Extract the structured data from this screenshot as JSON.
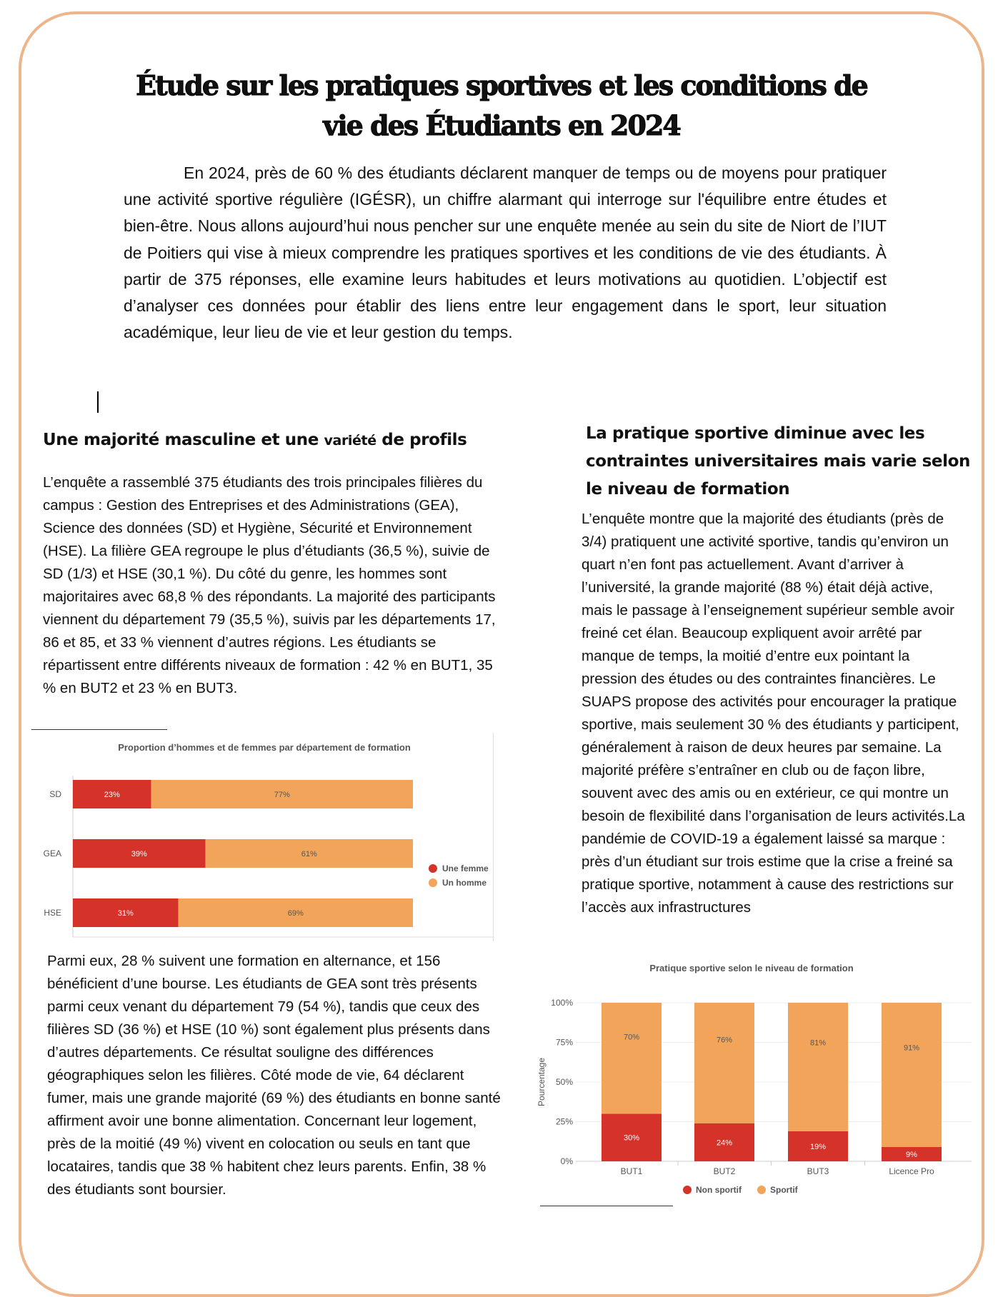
{
  "title_line1": "Étude sur les pratiques sportives et les conditions de",
  "title_line2": "vie des Étudiants en 2024",
  "intro": "En 2024, près de 60 % des étudiants déclarent manquer de temps ou de moyens pour pratiquer une activité sportive régulière (IGÉSR), un chiffre alarmant qui interroge sur l'équilibre entre études et bien-être. Nous allons aujourd’hui nous pencher sur une enquête menée au sein du site de Niort de l’IUT de Poitiers qui vise à mieux comprendre les pratiques sportives et les conditions de vie des étudiants. À partir de 375 réponses, elle examine leurs habitudes et leurs motivations au quotidien. L’objectif est d’analyser ces données pour établir des liens entre leur engagement dans le sport, leur situation académique, leur lieu de vie et leur gestion du temps.",
  "left": {
    "heading_part1": "Une majorité masculine et une ",
    "heading_part2": "variété",
    "heading_part3": " de profils",
    "paragraph1": "L’enquête a rassemblé 375 étudiants des trois principales filières du campus : Gestion des Entreprises et des Administrations (GEA), Science des données (SD) et Hygiène, Sécurité et Environnement (HSE). La filière GEA regroupe le plus d’étudiants (36,5 %), suivie de SD (1/3) et HSE (30,1 %). Du côté du genre, les hommes sont majoritaires avec 68,8 % des répondants. La majorité des participants viennent du département 79 (35,5 %), suivis par les départements 17, 86 et 85, et 33 % viennent d’autres régions. Les étudiants se répartissent entre différents niveaux de formation : 42 % en BUT1, 35 % en BUT2 et 23 % en BUT3.",
    "paragraph2": "Parmi eux, 28 % suivent une formation en alternance, et 156 bénéficient d’une bourse. Les étudiants de GEA sont très présents parmi ceux venant du département 79 (54 %), tandis que ceux des filières SD (36 %) et HSE (10 %) sont également plus présents dans d’autres départements. Ce résultat souligne des différences géographiques selon les filières. Côté mode de vie, 64 déclarent fumer, mais une grande majorité (69 %) des étudiants en bonne santé affirment avoir une bonne alimentation. Concernant leur logement, près de la moitié (49 %) vivent en colocation ou seuls en tant que locataires, tandis que 38 % habitent chez leurs parents. Enfin, 38 % des étudiants sont boursier."
  },
  "right": {
    "heading": "La pratique sportive diminue avec les contraintes universitaires mais varie selon le niveau de formation",
    "paragraph": "L’enquête montre que la majorité des étudiants (près de 3/4) pratiquent une activité sportive, tandis qu’environ un quart n’en font pas actuellement. Avant d’arriver à l’université, la grande majorité (88 %) était déjà active, mais le passage à l’enseignement supérieur semble avoir freiné cet élan. Beaucoup expliquent avoir arrêté par manque de temps, la moitié d’entre eux pointant la pression des études ou des contraintes financières. Le SUAPS propose des activités pour encourager la pratique sportive, mais seulement 30 % des étudiants y participent, généralement à raison de deux heures par semaine. La majorité préfère s’entraîner en club ou de façon libre, souvent avec des amis ou en extérieur, ce qui montre un besoin de flexibilité dans l’organisation de leurs activités.La pandémie de COVID-19 a également laissé sa marque : près d’un étudiant sur trois estime que la crise a freiné sa pratique sportive, notamment à cause des restrictions sur l’accès aux infrastructures"
  },
  "colors": {
    "red": "#d5322a",
    "orange": "#f2a55a",
    "frame": "#edb58b"
  },
  "chart_data": [
    {
      "type": "bar",
      "orientation": "horizontal",
      "stacked": true,
      "title": "Proportion d’hommes et de femmes par département de formation",
      "categories": [
        "SD",
        "GEA",
        "HSE"
      ],
      "series": [
        {
          "name": "Une femme",
          "values": [
            23,
            39,
            31
          ],
          "labels": [
            "23%",
            "39%",
            "31%"
          ]
        },
        {
          "name": "Un homme",
          "values": [
            77,
            61,
            69
          ],
          "labels": [
            "77%",
            "61%",
            "69%"
          ]
        }
      ],
      "legend": "right"
    },
    {
      "type": "bar",
      "stacked": true,
      "title": "Pratique sportive selon le niveau de formation",
      "ylabel": "Pourcentage",
      "yticks": [
        "0%",
        "25%",
        "50%",
        "75%",
        "100%"
      ],
      "ylim": [
        0,
        100
      ],
      "categories": [
        "BUT1",
        "BUT2",
        "BUT3",
        "Licence Pro"
      ],
      "series": [
        {
          "name": "Non sportif",
          "values": [
            30,
            24,
            19,
            9
          ],
          "labels": [
            "30%",
            "24%",
            "19%",
            "9%"
          ]
        },
        {
          "name": "Sportif",
          "values": [
            70,
            76,
            81,
            91
          ],
          "labels": [
            "70%",
            "76%",
            "81%",
            "91%"
          ]
        }
      ],
      "legend": "bottom"
    }
  ]
}
